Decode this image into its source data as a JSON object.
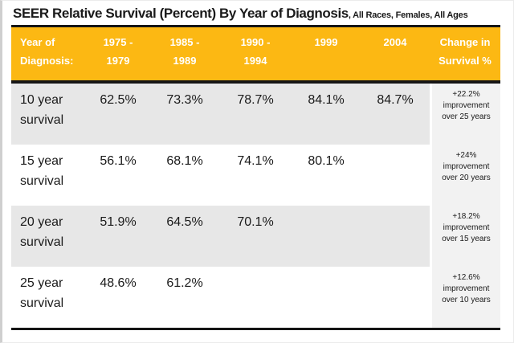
{
  "title": {
    "main": "SEER Relative Survival (Percent) By Year of Diagnosis",
    "suffix": ", All Races, Females, All Ages"
  },
  "colors": {
    "header_bg": "#FCB813",
    "header_text": "#FFFFFF",
    "alt_row_bg": "#E7E7E7",
    "change_col_bg": "#F2F2F2",
    "rule": "#151515",
    "text": "#1A1A1A"
  },
  "table": {
    "columns": [
      "Year of Diagnosis:",
      "1975 - 1979",
      "1985 - 1989",
      "1990 - 1994",
      "1999",
      "2004",
      "Change in Survival %"
    ],
    "rows": [
      {
        "label": "10 year survival",
        "v1": "62.5%",
        "v2": "73.3%",
        "v3": "78.7%",
        "v4": "84.1%",
        "v5": "84.7%",
        "change": "+22.2% improvement over 25 years"
      },
      {
        "label": "15 year survival",
        "v1": "56.1%",
        "v2": "68.1%",
        "v3": "74.1%",
        "v4": "80.1%",
        "v5": "",
        "change": "+24% improvement over 20 years"
      },
      {
        "label": "20 year survival",
        "v1": "51.9%",
        "v2": "64.5%",
        "v3": "70.1%",
        "v4": "",
        "v5": "",
        "change": "+18.2% improvement over 15 years"
      },
      {
        "label": "25 year survival",
        "v1": "48.6%",
        "v2": "61.2%",
        "v3": "",
        "v4": "",
        "v5": "",
        "change": "+12.6% improvement over 10 years"
      }
    ]
  },
  "chart_data": {
    "type": "table",
    "title": "SEER Relative Survival (Percent) By Year of Diagnosis",
    "subtitle": "All Races, Females, All Ages",
    "categories": [
      "1975 - 1979",
      "1985 - 1989",
      "1990 - 1994",
      "1999",
      "2004"
    ],
    "series": [
      {
        "name": "10 year survival",
        "values": [
          62.5,
          73.3,
          78.7,
          84.1,
          84.7
        ],
        "change": "+22.2% improvement over 25 years"
      },
      {
        "name": "15 year survival",
        "values": [
          56.1,
          68.1,
          74.1,
          80.1,
          null
        ],
        "change": "+24% improvement over 20 years"
      },
      {
        "name": "20 year survival",
        "values": [
          51.9,
          64.5,
          70.1,
          null,
          null
        ],
        "change": "+18.2% improvement over 15 years"
      },
      {
        "name": "25 year survival",
        "values": [
          48.6,
          61.2,
          null,
          null,
          null
        ],
        "change": "+12.6% improvement over 10 years"
      }
    ],
    "legend_position": "none",
    "grid": false
  }
}
